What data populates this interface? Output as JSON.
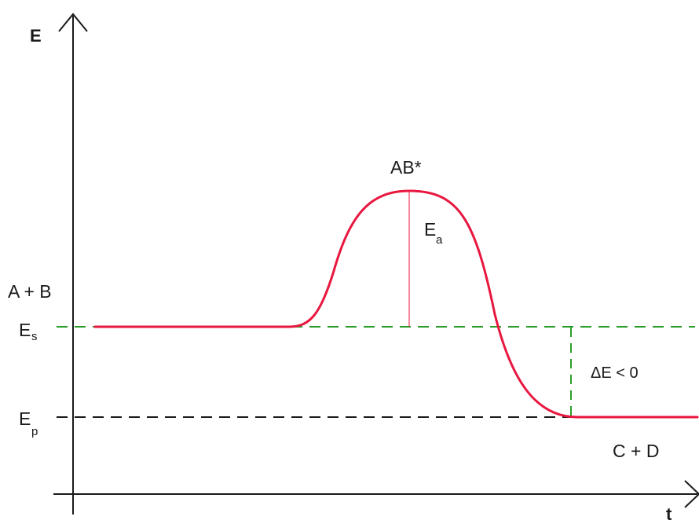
{
  "axes": {
    "y_label": "E",
    "x_label": "t"
  },
  "levels": {
    "reactants_label": "A + B",
    "es_main": "E",
    "es_sub": "s",
    "ep_main": "E",
    "ep_sub": "p",
    "products_label": "C + D"
  },
  "transition_state": {
    "label": "AB*",
    "ea_main": "E",
    "ea_sub": "a"
  },
  "delta": {
    "label": "ΔE < 0"
  },
  "colors": {
    "curve": "#e8173f",
    "reactant_level": "#2a9d2a",
    "product_level": "#1a1a1a",
    "axis": "#1a1a1a",
    "activation_line": "#e8173f"
  }
}
